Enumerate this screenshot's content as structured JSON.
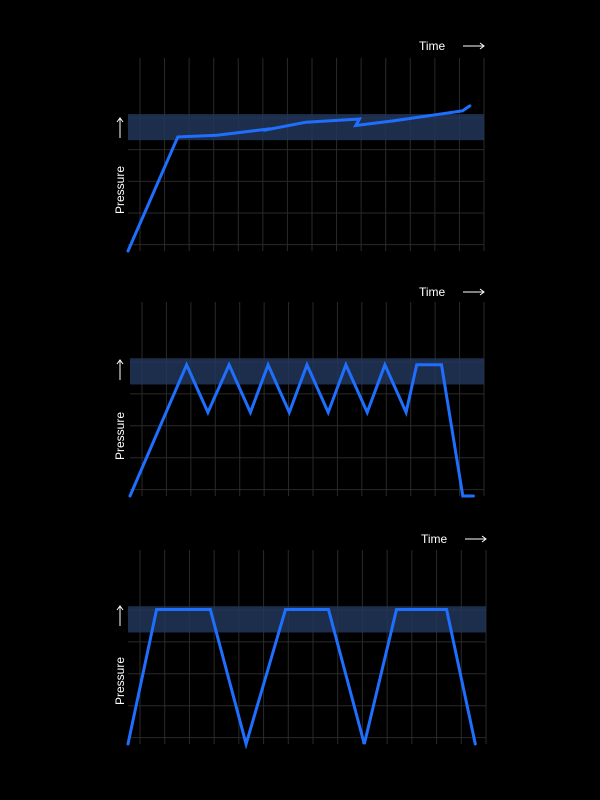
{
  "colors": {
    "background": "#000000",
    "trace": "#1f6fff",
    "band": "#22365a",
    "grid": "#2a2a2a",
    "text": "#ffffff"
  },
  "chart_data": [
    {
      "type": "line",
      "xlabel": "Time",
      "ylabel": "Pressure",
      "xlim": [
        0,
        100
      ],
      "ylim": [
        0,
        100
      ],
      "grid": true,
      "band": [
        68,
        84
      ],
      "series": [
        {
          "x": [
            0,
            14,
            25,
            40,
            38,
            50,
            65,
            64,
            75,
            94,
            96
          ],
          "y": [
            0,
            70,
            71,
            75,
            74,
            79,
            81,
            77,
            80,
            86,
            89
          ]
        }
      ]
    },
    {
      "type": "line",
      "xlabel": "Time",
      "ylabel": "Pressure",
      "xlim": [
        0,
        100
      ],
      "ylim": [
        0,
        100
      ],
      "grid": true,
      "band": [
        68,
        84
      ],
      "series": [
        {
          "x": [
            0,
            16,
            22,
            28,
            34,
            39,
            45,
            50,
            56,
            61,
            67,
            72,
            78,
            81,
            88,
            94,
            97
          ],
          "y": [
            0,
            80,
            51,
            80,
            51,
            80,
            51,
            80,
            51,
            80,
            51,
            80,
            51,
            80,
            80,
            0,
            0
          ]
        }
      ]
    },
    {
      "type": "line",
      "xlabel": "Time",
      "ylabel": "Pressure",
      "xlim": [
        0,
        100
      ],
      "ylim": [
        0,
        100
      ],
      "grid": true,
      "band": [
        68,
        84
      ],
      "series": [
        {
          "x": [
            0,
            8,
            23,
            33,
            44,
            56,
            66,
            75,
            89,
            97
          ],
          "y": [
            0,
            82,
            82,
            0,
            82,
            82,
            0,
            82,
            82,
            0
          ]
        }
      ]
    }
  ]
}
